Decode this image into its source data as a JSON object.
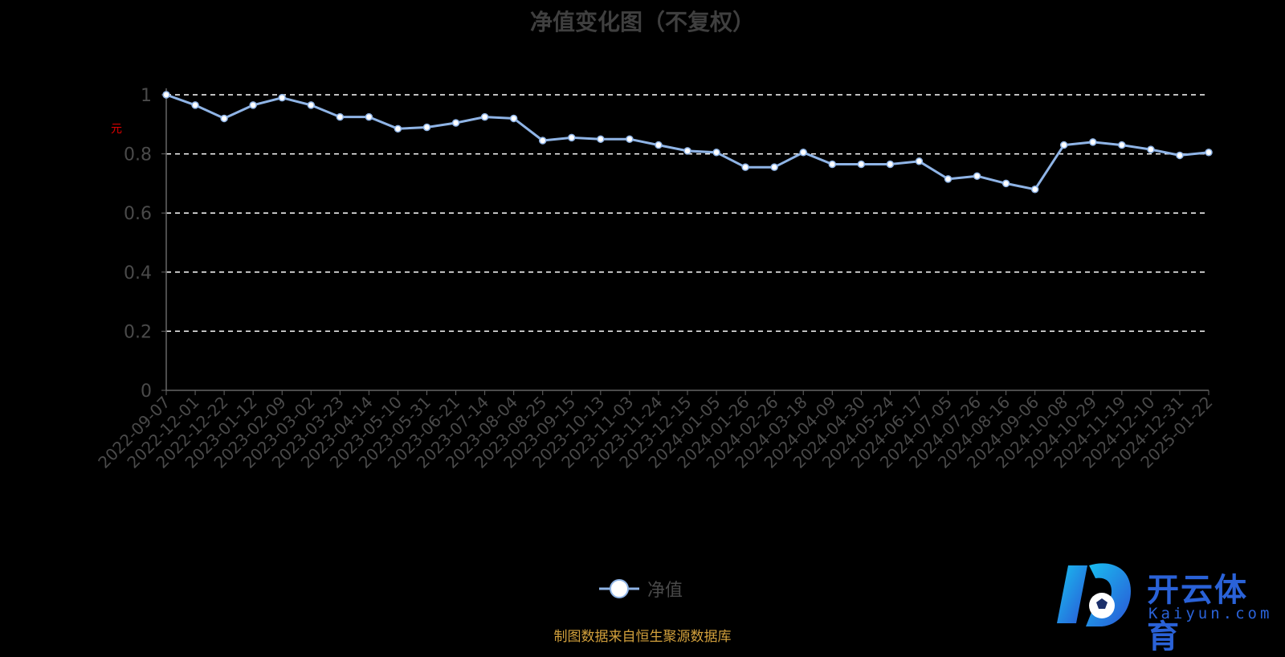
{
  "chart_data": {
    "type": "line",
    "title": "净值变化图（不复权）",
    "ylabel": "元",
    "ylim": [
      0,
      1
    ],
    "yticks": [
      "0",
      "0.2",
      "0.4",
      "0.6",
      "0.8",
      "1"
    ],
    "grid": true,
    "legend_position": "bottom-center",
    "series": [
      {
        "name": "净值",
        "color": "#8fb4e6",
        "x_dates": [
          "2022-09-07",
          "2022-12-01",
          "2022-12-22",
          "2023-01-12",
          "2023-02-09",
          "2023-03-02",
          "2023-03-23",
          "2023-04-14",
          "2023-05-10",
          "2023-05-31",
          "2023-06-21",
          "2023-07-14",
          "2023-08-04",
          "2023-08-25",
          "2023-09-15",
          "2023-10-13",
          "2023-11-03",
          "2023-11-24",
          "2023-12-15",
          "2024-01-05",
          "2024-01-26",
          "2024-02-26",
          "2024-03-18",
          "2024-04-09",
          "2024-04-30",
          "2024-05-24",
          "2024-06-17",
          "2024-07-05",
          "2024-07-26",
          "2024-08-16",
          "2024-09-06",
          "2024-10-08",
          "2024-10-29",
          "2024-11-19",
          "2024-12-10",
          "2024-12-31",
          "2025-01-22"
        ],
        "values": [
          1.0,
          0.965,
          0.92,
          0.965,
          0.99,
          0.965,
          0.925,
          0.925,
          0.885,
          0.89,
          0.905,
          0.925,
          0.92,
          0.845,
          0.855,
          0.85,
          0.85,
          0.83,
          0.81,
          0.805,
          0.755,
          0.755,
          0.805,
          0.765,
          0.765,
          0.765,
          0.775,
          0.715,
          0.725,
          0.7,
          0.68,
          0.83,
          0.84,
          0.83,
          0.815,
          0.795,
          0.805
        ]
      }
    ]
  },
  "legend": {
    "label": "净值"
  },
  "source_note": "制图数据来自恒生聚源数据库",
  "watermark": {
    "brand": "开云体育",
    "domain": "Kaiyun.com"
  }
}
